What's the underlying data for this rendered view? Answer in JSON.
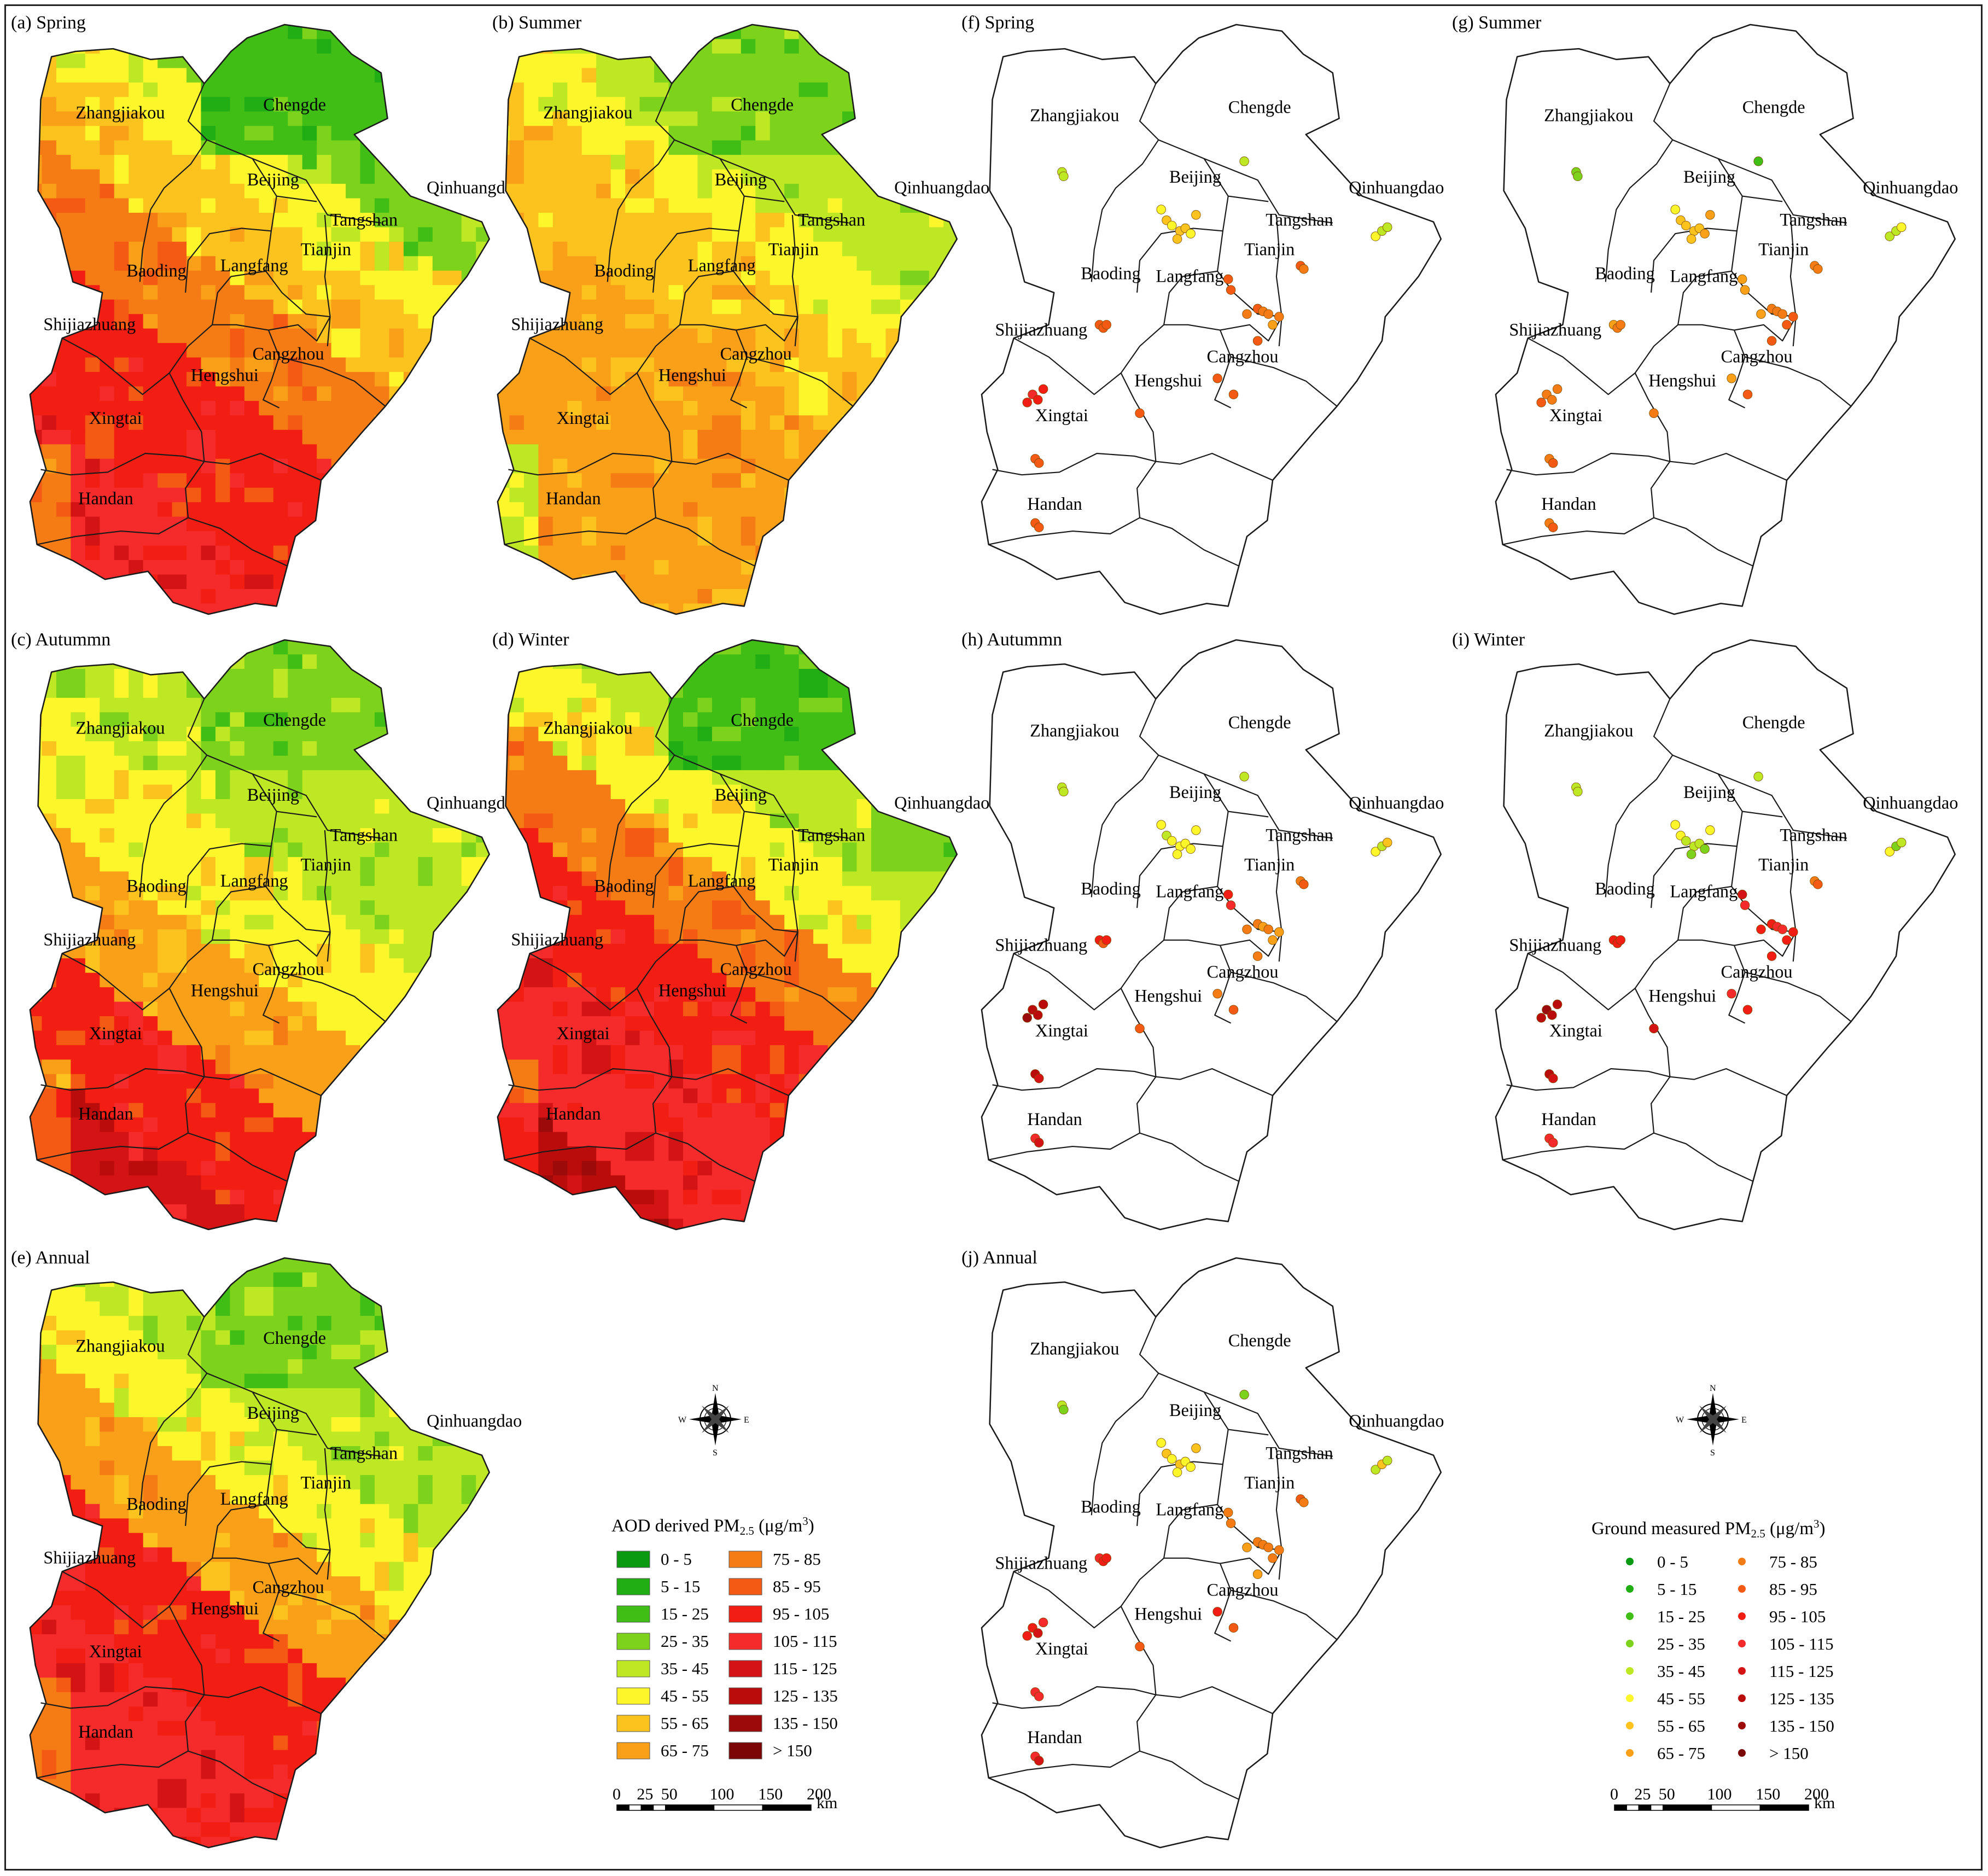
{
  "panels": [
    {
      "id": "a",
      "label": "(a) Spring",
      "kind": "aod",
      "season": "spring"
    },
    {
      "id": "b",
      "label": "(b) Summer",
      "kind": "aod",
      "season": "summer"
    },
    {
      "id": "f",
      "label": "(f) Spring",
      "kind": "ground",
      "season": "spring"
    },
    {
      "id": "g",
      "label": "(g) Summer",
      "kind": "ground",
      "season": "summer"
    },
    {
      "id": "c",
      "label": "(c) Autummn",
      "kind": "aod",
      "season": "autumn"
    },
    {
      "id": "d",
      "label": "(d) Winter",
      "kind": "aod",
      "season": "winter"
    },
    {
      "id": "h",
      "label": "(h) Autummn",
      "kind": "ground",
      "season": "autumn"
    },
    {
      "id": "i",
      "label": "(i) Winter",
      "kind": "ground",
      "season": "winter"
    },
    {
      "id": "e",
      "label": "(e) Annual",
      "kind": "aod",
      "season": "annual"
    },
    {
      "id": "j",
      "label": "(j) Annual",
      "kind": "ground",
      "season": "annual"
    }
  ],
  "cities": [
    "Zhangjiakou",
    "Chengde",
    "Beijing",
    "Qinhuangdao",
    "Tangshan",
    "Tianjin",
    "Langfang",
    "Baoding",
    "Shijiazhuang",
    "Cangzhou",
    "Hengshui",
    "Xingtai",
    "Handan"
  ],
  "legend_classes": [
    {
      "label": "0 - 5",
      "color": "#0a9a12"
    },
    {
      "label": "5 - 15",
      "color": "#21ad14"
    },
    {
      "label": "15 - 25",
      "color": "#40be16"
    },
    {
      "label": "25 - 35",
      "color": "#7dd21b"
    },
    {
      "label": "35 - 45",
      "color": "#bde823"
    },
    {
      "label": "45 - 55",
      "color": "#fcf62a"
    },
    {
      "label": "55 - 65",
      "color": "#fcc21e"
    },
    {
      "label": "65 - 75",
      "color": "#f9a018"
    },
    {
      "label": "75 - 85",
      "color": "#f57c15"
    },
    {
      "label": "85 - 95",
      "color": "#f45a14"
    },
    {
      "label": "95 - 105",
      "color": "#f21e14"
    },
    {
      "label": "105 - 115",
      "color": "#f52a2a"
    },
    {
      "label": "115 - 125",
      "color": "#d41414"
    },
    {
      "label": "125 - 135",
      "color": "#bb0c0c"
    },
    {
      "label": "135 - 150",
      "color": "#9c0a0a"
    },
    {
      "label": "> 150",
      "color": "#7a0606"
    }
  ],
  "aod_legend": {
    "title_main": "AOD derived PM",
    "title_sub": "2.5",
    "title_units": " (μg/m",
    "title_sup": "3",
    "title_close": ")"
  },
  "ground_legend": {
    "title_main": "Ground measured PM",
    "title_sub": "2.5",
    "title_units": " (μg/m",
    "title_sup": "3",
    "title_close": ")"
  },
  "compass": {
    "n": "N",
    "s": "S",
    "e": "E",
    "w": "W"
  },
  "scale_bar": {
    "ticks": [
      "0",
      "25",
      "50",
      "100",
      "150",
      "200"
    ],
    "unit": "km"
  }
}
